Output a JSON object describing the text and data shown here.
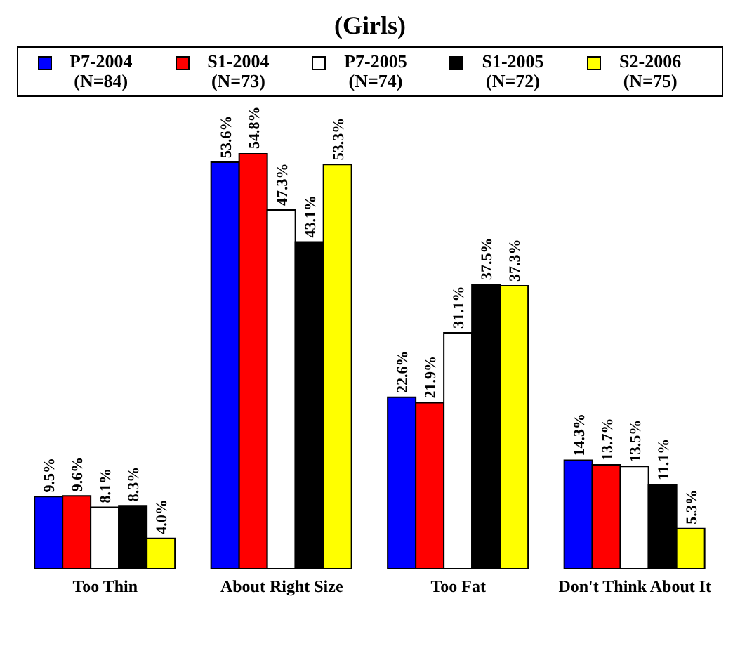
{
  "chart_data": {
    "type": "bar",
    "title": "(Girls)",
    "categories": [
      "Too Thin",
      "About Right Size",
      "Too Fat",
      "Don't Think About It"
    ],
    "legend": "top",
    "series": [
      {
        "name": "P7-2004 (N=84)",
        "color": "#0000ff",
        "values": [
          9.5,
          53.6,
          22.6,
          14.3
        ],
        "value_labels": [
          "9.5%",
          "53.6%",
          "22.6%",
          "14.3%"
        ]
      },
      {
        "name": "S1-2004 (N=73)",
        "color": "#ff0000",
        "values": [
          9.6,
          54.8,
          21.9,
          13.7
        ],
        "value_labels": [
          "9.6%",
          "54.8%",
          "21.9%",
          "13.7%"
        ]
      },
      {
        "name": "P7-2005 (N=74)",
        "color": "#ffffff",
        "values": [
          8.1,
          47.3,
          31.1,
          13.5
        ],
        "value_labels": [
          "8.1%",
          "47.3%",
          "31.1%",
          "13.5%"
        ]
      },
      {
        "name": "S1-2005 (N=72)",
        "color": "#000000",
        "values": [
          8.3,
          43.1,
          37.5,
          11.1
        ],
        "value_labels": [
          "8.3%",
          "43.1%",
          "37.5%",
          "11.1%"
        ]
      },
      {
        "name": "S2-2006 (N=75)",
        "color": "#ffff00",
        "values": [
          4.0,
          53.3,
          37.3,
          5.3
        ],
        "value_labels": [
          "4.0%",
          "53.3%",
          "37.3%",
          "5.3%"
        ]
      }
    ]
  }
}
